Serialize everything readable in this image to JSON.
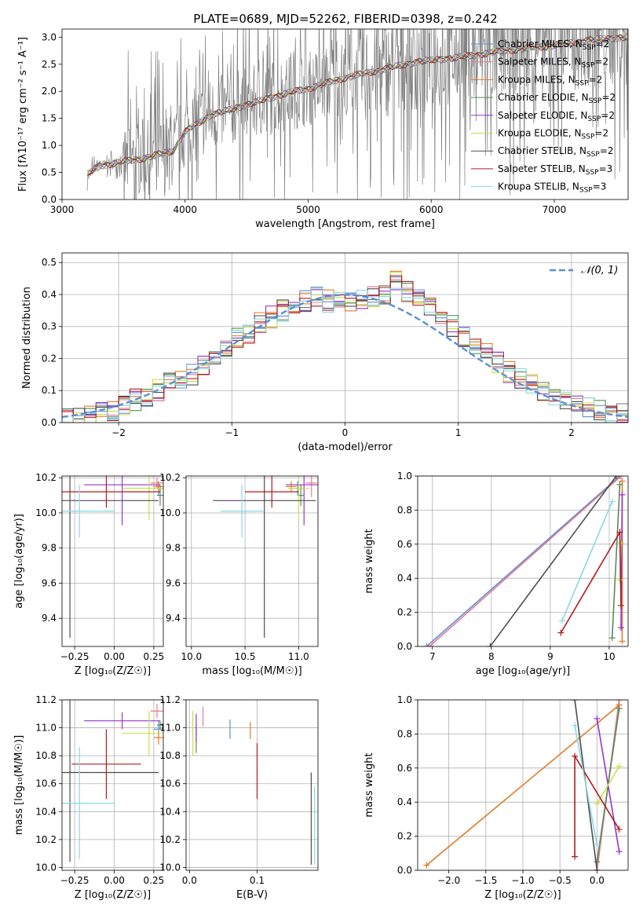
{
  "title": "PLATE=0689, MJD=52262, FIBERID=0398, z=0.242",
  "colors": {
    "Chabrier MILES": "#5b8fd6",
    "Salpeter MILES": "#e87a8a",
    "Kroupa MILES": "#e07b28",
    "Chabrier ELODIE": "#5a8a5a",
    "Salpeter ELODIE": "#9933cc",
    "Kroupa ELODIE": "#c8e04a",
    "Chabrier STELIB": "#4d4d4d",
    "Salpeter STELIB": "#b01c1c",
    "Kroupa STELIB": "#88d8e0",
    "data": "#808080"
  },
  "chart_data": [
    {
      "type": "line",
      "name": "spectrum",
      "xlabel": "wavelength [Angstrom, rest frame]",
      "ylabel": "Flux [fλ10⁻¹⁷ erg cm⁻² s⁻¹ A⁻¹]",
      "xlim": [
        3000,
        7600
      ],
      "ylim": [
        0,
        3.15
      ],
      "xticks": [
        3000,
        4000,
        5000,
        6000,
        7000
      ],
      "yticks": [
        0.0,
        0.5,
        1.0,
        1.5,
        2.0,
        2.5,
        3.0
      ],
      "legend": [
        {
          "name": "Chabrier MILES",
          "nssp": "2"
        },
        {
          "name": "Salpeter MILES",
          "nssp": "2"
        },
        {
          "name": "Kroupa MILES",
          "nssp": "2"
        },
        {
          "name": "Chabrier ELODIE",
          "nssp": "2"
        },
        {
          "name": "Salpeter ELODIE",
          "nssp": "2"
        },
        {
          "name": "Kroupa ELODIE",
          "nssp": "2"
        },
        {
          "name": "Chabrier STELIB",
          "nssp": "2"
        },
        {
          "name": "Salpeter STELIB",
          "nssp": "3"
        },
        {
          "name": "Kroupa STELIB",
          "nssp": "3"
        }
      ],
      "model_continuum": {
        "x": [
          3200,
          3300,
          3500,
          3700,
          3900,
          4000,
          4200,
          4500,
          4800,
          5000,
          5300,
          5600,
          5900,
          6200,
          6600,
          7000,
          7300,
          7600
        ],
        "y": [
          0.45,
          0.62,
          0.7,
          0.78,
          0.9,
          1.25,
          1.55,
          1.75,
          1.95,
          2.05,
          2.25,
          2.4,
          2.55,
          2.62,
          2.75,
          2.85,
          2.95,
          3.0
        ]
      },
      "grid": false,
      "legend_position": "upper-right"
    },
    {
      "type": "bar",
      "name": "residuals",
      "xlabel": "(data-model)/error",
      "ylabel": "Normed distribution",
      "xlim": [
        -2.5,
        2.5
      ],
      "ylim": [
        0,
        0.53
      ],
      "xticks": [
        -2,
        -1,
        0,
        1,
        2
      ],
      "yticks": [
        0.0,
        0.1,
        0.2,
        0.3,
        0.4,
        0.5
      ],
      "gaussian_label": "𝒩(0, 1)",
      "grid": true,
      "legend_position": "upper-right",
      "bin_edges": [
        -2.5,
        -2.4,
        -2.3,
        -2.2,
        -2.1,
        -2.0,
        -1.9,
        -1.8,
        -1.7,
        -1.6,
        -1.5,
        -1.4,
        -1.3,
        -1.2,
        -1.1,
        -1.0,
        -0.9,
        -0.8,
        -0.7,
        -0.6,
        -0.5,
        -0.4,
        -0.3,
        -0.2,
        -0.1,
        0.0,
        0.1,
        0.2,
        0.3,
        0.4,
        0.5,
        0.6,
        0.7,
        0.8,
        0.9,
        1.0,
        1.1,
        1.2,
        1.3,
        1.4,
        1.5,
        1.6,
        1.7,
        1.8,
        1.9,
        2.0,
        2.1,
        2.2,
        2.3,
        2.4,
        2.5
      ],
      "hist_base": [
        0.01,
        0.02,
        0.03,
        0.04,
        0.04,
        0.05,
        0.07,
        0.08,
        0.1,
        0.12,
        0.13,
        0.15,
        0.18,
        0.2,
        0.22,
        0.26,
        0.28,
        0.31,
        0.33,
        0.35,
        0.37,
        0.38,
        0.39,
        0.38,
        0.39,
        0.38,
        0.38,
        0.39,
        0.4,
        0.44,
        0.41,
        0.38,
        0.36,
        0.33,
        0.3,
        0.27,
        0.24,
        0.22,
        0.19,
        0.16,
        0.14,
        0.12,
        0.1,
        0.09,
        0.07,
        0.06,
        0.05,
        0.04,
        0.03,
        0.03
      ]
    },
    {
      "type": "scatter",
      "name": "age-vs-Z",
      "xlabel": "Z [log₁₀(Z/Z☉)]",
      "ylabel": "age  [log₁₀(age/yr)]",
      "xlim": [
        -0.33,
        0.31
      ],
      "ylim": [
        9.24,
        10.21
      ],
      "xticks": [
        -0.25,
        0.0,
        0.25
      ],
      "xticklabels": [
        "−0.25",
        "0.00",
        "0.25"
      ],
      "yticks": [
        9.4,
        9.6,
        9.8,
        10.0,
        10.2
      ],
      "points": [
        {
          "model": "Chabrier MILES",
          "x": 0.28,
          "y": 10.14,
          "xerr": 0.03,
          "yerr": 0.04
        },
        {
          "model": "Salpeter MILES",
          "x": 0.27,
          "y": 10.17,
          "xerr": 0.04,
          "yerr": 0.03
        },
        {
          "model": "Kroupa MILES",
          "x": 0.28,
          "y": 10.15,
          "xerr": 0.03,
          "yerr": 0.03
        },
        {
          "model": "Chabrier ELODIE",
          "x": 0.29,
          "y": 10.1,
          "xerr": 0.02,
          "yerr": 0.06
        },
        {
          "model": "Salpeter ELODIE",
          "x": 0.05,
          "y": 10.16,
          "xerr": 0.24,
          "yerr": 0.23
        },
        {
          "model": "Kroupa ELODIE",
          "x": 0.22,
          "y": 10.14,
          "xerr": 0.17,
          "yerr": 0.18
        },
        {
          "model": "Chabrier STELIB",
          "x": -0.28,
          "y": 10.07,
          "xerr": 0.56,
          "yerr": 0.78
        },
        {
          "model": "Salpeter STELIB",
          "x": -0.05,
          "y": 10.12,
          "xerr": 0.34,
          "yerr": 0.09
        },
        {
          "model": "Kroupa STELIB",
          "x": -0.22,
          "y": 10.01,
          "xerr": 0.22,
          "yerr": 0.15
        }
      ]
    },
    {
      "type": "scatter",
      "name": "age-vs-mass",
      "xlabel": "mass [log₁₀(M/M☉)]",
      "ylabel": "",
      "xlim": [
        9.95,
        11.18
      ],
      "ylim": [
        9.24,
        10.21
      ],
      "xticks": [
        10.0,
        10.5,
        11.0
      ],
      "xticklabels": [
        "10.0",
        "10.5",
        "11.0"
      ],
      "yticks": [
        9.4,
        9.6,
        9.8,
        10.0,
        10.2
      ],
      "points": [
        {
          "model": "Chabrier MILES",
          "x": 10.99,
          "y": 10.14,
          "xerr": 0.06,
          "yerr": 0.04
        },
        {
          "model": "Salpeter MILES",
          "x": 11.12,
          "y": 10.17,
          "xerr": 0.05,
          "yerr": 0.08
        },
        {
          "model": "Kroupa MILES",
          "x": 10.93,
          "y": 10.15,
          "xerr": 0.05,
          "yerr": 0.03
        },
        {
          "model": "Chabrier ELODIE",
          "x": 11.02,
          "y": 10.1,
          "xerr": 0.03,
          "yerr": 0.06
        },
        {
          "model": "Salpeter ELODIE",
          "x": 11.05,
          "y": 10.16,
          "xerr": 0.17,
          "yerr": 0.23
        },
        {
          "model": "Kroupa ELODIE",
          "x": 11.0,
          "y": 10.14,
          "xerr": 0.1,
          "yerr": 0.18
        },
        {
          "model": "Chabrier STELIB",
          "x": 10.68,
          "y": 10.07,
          "xerr": 0.48,
          "yerr": 0.78
        },
        {
          "model": "Salpeter STELIB",
          "x": 10.75,
          "y": 10.12,
          "xerr": 0.25,
          "yerr": 0.09
        },
        {
          "model": "Kroupa STELIB",
          "x": 10.47,
          "y": 10.01,
          "xerr": 0.2,
          "yerr": 0.15
        }
      ]
    },
    {
      "type": "line",
      "name": "weight-vs-age",
      "xlabel": "age  [log₁₀(age/yr)]",
      "ylabel": "mass weight",
      "xlim": [
        6.75,
        10.32
      ],
      "ylim": [
        0,
        1.0
      ],
      "xticks": [
        7,
        8,
        9,
        10
      ],
      "yticks": [
        0.0,
        0.2,
        0.4,
        0.6,
        0.8,
        1.0
      ],
      "series": [
        {
          "model": "Chabrier MILES",
          "x": [
            6.9,
            10.18
          ],
          "y": [
            0.0,
            1.0
          ]
        },
        {
          "model": "Salpeter MILES",
          "x": [
            6.95,
            10.2
          ],
          "y": [
            0.0,
            1.0
          ]
        },
        {
          "model": "Kroupa MILES",
          "x": [
            10.22,
            10.22
          ],
          "y": [
            0.03,
            0.97
          ]
        },
        {
          "model": "Chabrier ELODIE",
          "x": [
            10.05,
            10.18
          ],
          "y": [
            0.05,
            0.95
          ]
        },
        {
          "model": "Salpeter ELODIE",
          "x": [
            10.2,
            10.22
          ],
          "y": [
            0.11,
            0.89
          ]
        },
        {
          "model": "Kroupa ELODIE",
          "x": [
            10.18,
            10.2
          ],
          "y": [
            0.39,
            0.61
          ]
        },
        {
          "model": "Chabrier STELIB",
          "x": [
            7.98,
            10.12
          ],
          "y": [
            0.0,
            1.0
          ]
        },
        {
          "model": "Salpeter STELIB",
          "x": [
            9.18,
            10.18,
            10.2
          ],
          "y": [
            0.08,
            0.67,
            0.24
          ]
        },
        {
          "model": "Kroupa STELIB",
          "x": [
            9.2,
            10.05
          ],
          "y": [
            0.15,
            0.85
          ]
        }
      ]
    },
    {
      "type": "scatter",
      "name": "mass-vs-Z",
      "xlabel": "Z [log₁₀(Z/Z☉)]",
      "ylabel": "mass [log₁₀(M/M☉)]",
      "xlim": [
        -0.33,
        0.31
      ],
      "ylim": [
        9.98,
        11.2
      ],
      "xticks": [
        -0.25,
        0.0,
        0.25
      ],
      "xticklabels": [
        "−0.25",
        "0.00",
        "0.25"
      ],
      "yticks": [
        10.0,
        10.2,
        10.4,
        10.6,
        10.8,
        11.0,
        11.2
      ],
      "points": [
        {
          "model": "Chabrier MILES",
          "x": 0.28,
          "y": 10.99,
          "xerr": 0.03,
          "yerr": 0.06
        },
        {
          "model": "Salpeter MILES",
          "x": 0.27,
          "y": 11.12,
          "xerr": 0.04,
          "yerr": 0.05
        },
        {
          "model": "Kroupa MILES",
          "x": 0.28,
          "y": 10.93,
          "xerr": 0.03,
          "yerr": 0.05
        },
        {
          "model": "Chabrier ELODIE",
          "x": 0.29,
          "y": 11.02,
          "xerr": 0.02,
          "yerr": 0.03
        },
        {
          "model": "Salpeter ELODIE",
          "x": 0.05,
          "y": 11.05,
          "xerr": 0.24,
          "yerr": 0.06
        },
        {
          "model": "Kroupa ELODIE",
          "x": 0.22,
          "y": 10.96,
          "xerr": 0.17,
          "yerr": 0.16
        },
        {
          "model": "Chabrier STELIB",
          "x": -0.28,
          "y": 10.68,
          "xerr": 0.56,
          "yerr": 0.64
        },
        {
          "model": "Salpeter STELIB",
          "x": -0.05,
          "y": 10.74,
          "xerr": 0.22,
          "yerr": 0.25
        },
        {
          "model": "Kroupa STELIB",
          "x": -0.22,
          "y": 10.46,
          "xerr": 0.22,
          "yerr": 0.4
        }
      ]
    },
    {
      "type": "scatter",
      "name": "mass-vs-ebv",
      "xlabel": "E(B-V)",
      "ylabel": "",
      "xlim": [
        -0.005,
        0.19
      ],
      "ylim": [
        9.98,
        11.2
      ],
      "xticks": [
        0.0,
        0.1
      ],
      "xticklabels": [
        "0.0",
        "0.1"
      ],
      "yticks": [
        10.0,
        10.2,
        10.4,
        10.6,
        10.8,
        11.0,
        11.2
      ],
      "points": [
        {
          "model": "Chabrier MILES",
          "x": 0.06,
          "y": 10.99,
          "yerr": 0.07
        },
        {
          "model": "Salpeter MILES",
          "x": 0.02,
          "y": 11.08,
          "yerr": 0.07
        },
        {
          "model": "Kroupa MILES",
          "x": 0.09,
          "y": 10.98,
          "yerr": 0.06
        },
        {
          "model": "Chabrier ELODIE",
          "x": 0.01,
          "y": 10.92,
          "yerr": 0.1
        },
        {
          "model": "Salpeter ELODIE",
          "x": 0.01,
          "y": 11.0,
          "yerr": 0.1
        },
        {
          "model": "Kroupa ELODIE",
          "x": 0.005,
          "y": 10.96,
          "yerr": 0.16
        },
        {
          "model": "Chabrier STELIB",
          "x": 0.18,
          "y": 10.35,
          "yerr": 0.33
        },
        {
          "model": "Salpeter STELIB",
          "x": 0.1,
          "y": 10.69,
          "yerr": 0.2
        },
        {
          "model": "Kroupa STELIB",
          "x": 0.185,
          "y": 10.3,
          "yerr": 0.28
        }
      ]
    },
    {
      "type": "line",
      "name": "weight-vs-Z",
      "xlabel": "Z [log₁₀(Z/Z☉)]",
      "ylabel": "mass weight",
      "xlim": [
        -2.42,
        0.42
      ],
      "ylim": [
        0,
        1.0
      ],
      "xticks": [
        -2.0,
        -1.5,
        -1.0,
        -0.5,
        0.0
      ],
      "xticklabels": [
        "−2.0",
        "−1.5",
        "−1.0",
        "−0.5",
        "0.0"
      ],
      "yticks": [
        0.0,
        0.2,
        0.4,
        0.6,
        0.8,
        1.0
      ],
      "series": [
        {
          "model": "Chabrier MILES",
          "x": [
            0.0,
            0.3
          ],
          "y": [
            0.0,
            1.0
          ]
        },
        {
          "model": "Salpeter MILES",
          "x": [
            0.0,
            0.3
          ],
          "y": [
            0.0,
            1.0
          ]
        },
        {
          "model": "Kroupa MILES",
          "x": [
            -2.3,
            0.3
          ],
          "y": [
            0.03,
            0.97
          ]
        },
        {
          "model": "Chabrier ELODIE",
          "x": [
            0.0,
            0.3
          ],
          "y": [
            0.05,
            0.95
          ]
        },
        {
          "model": "Salpeter ELODIE",
          "x": [
            0.0,
            0.3
          ],
          "y": [
            0.89,
            0.11
          ]
        },
        {
          "model": "Kroupa ELODIE",
          "x": [
            0.0,
            0.3
          ],
          "y": [
            0.39,
            0.61
          ]
        },
        {
          "model": "Chabrier STELIB",
          "x": [
            -0.3,
            0.0
          ],
          "y": [
            1.0,
            0.0
          ]
        },
        {
          "model": "Salpeter STELIB",
          "x": [
            -0.3,
            -0.3,
            0.3
          ],
          "y": [
            0.08,
            0.67,
            0.24
          ]
        },
        {
          "model": "Kroupa STELIB",
          "x": [
            -0.3,
            0.0
          ],
          "y": [
            0.85,
            0.15
          ]
        }
      ]
    }
  ]
}
